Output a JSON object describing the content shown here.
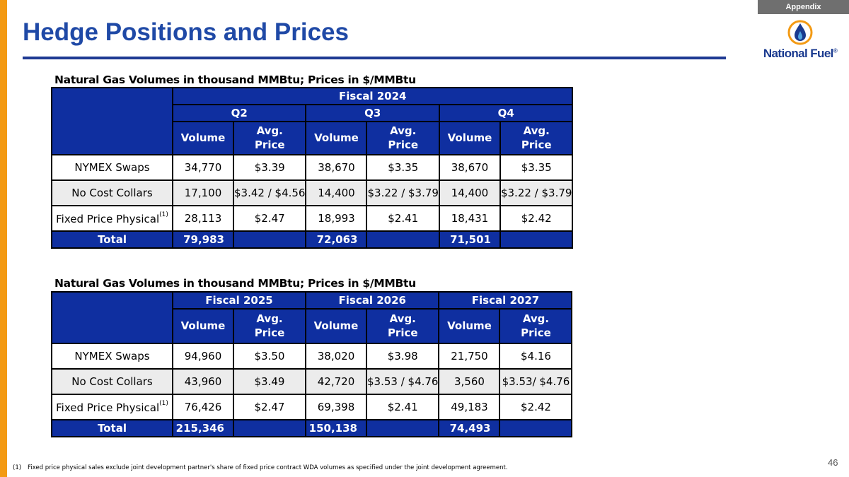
{
  "appendix_tab": "Appendix",
  "title": "Hedge Positions and Prices",
  "logo": {
    "text": "National Fuel",
    "trademark": "®"
  },
  "caption": "Natural Gas Volumes in thousand MMBtu; Prices in $/MMBtu",
  "colors": {
    "header_blue": "#0f2fa0",
    "title_blue": "#1f49a6",
    "accent_orange": "#f39a14"
  },
  "table1": {
    "fiscal_header": "Fiscal 2024",
    "groups": [
      "Q2",
      "Q3",
      "Q4"
    ],
    "col_volume": "Volume",
    "col_avg": "Avg.",
    "col_price": "Price",
    "rows": [
      {
        "label": "NYMEX Swaps",
        "cells": [
          "34,770",
          "$3.39",
          "38,670",
          "$3.35",
          "38,670",
          "$3.35"
        ]
      },
      {
        "label": "No Cost Collars",
        "cells": [
          "17,100",
          "$3.42 / $4.56",
          "14,400",
          "$3.22 / $3.79",
          "14,400",
          "$3.22 / $3.79"
        ]
      },
      {
        "label": "Fixed Price Physical",
        "sup": "(1)",
        "cells": [
          "28,113",
          "$2.47",
          "18,993",
          "$2.41",
          "18,431",
          "$2.42"
        ]
      }
    ],
    "total": {
      "label": "Total",
      "cells": [
        "79,983",
        "",
        "72,063",
        "",
        "71,501",
        ""
      ]
    }
  },
  "table2": {
    "groups": [
      "Fiscal 2025",
      "Fiscal 2026",
      "Fiscal 2027"
    ],
    "col_volume": "Volume",
    "col_avg": "Avg.",
    "col_price": "Price",
    "rows": [
      {
        "label": "NYMEX Swaps",
        "cells": [
          "94,960",
          "$3.50",
          "38,020",
          "$3.98",
          "21,750",
          "$4.16"
        ]
      },
      {
        "label": "No Cost Collars",
        "cells": [
          "43,960",
          "$3.49",
          "42,720",
          "$3.53 / $4.76",
          "3,560",
          "$3.53/ $4.76"
        ]
      },
      {
        "label": "Fixed Price Physical",
        "sup": "(1)",
        "cells": [
          "76,426",
          "$2.47",
          "69,398",
          "$2.41",
          "49,183",
          "$2.42"
        ]
      }
    ],
    "total": {
      "label": "Total",
      "cells": [
        "215,346",
        "",
        "150,138",
        "",
        "74,493",
        ""
      ]
    }
  },
  "footnote": {
    "number": "(1)",
    "text": "Fixed price physical sales exclude joint development partner's share of fixed price contract WDA volumes as specified under the joint development agreement."
  },
  "page_number": "46"
}
